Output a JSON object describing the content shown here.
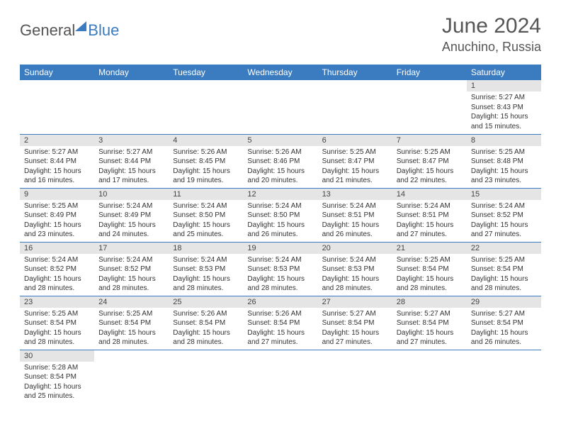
{
  "logo": {
    "part1": "General",
    "part2": "Blue"
  },
  "title": {
    "month": "June 2024",
    "location": "Anuchino, Russia"
  },
  "calendar": {
    "day_headers": [
      "Sunday",
      "Monday",
      "Tuesday",
      "Wednesday",
      "Thursday",
      "Friday",
      "Saturday"
    ],
    "header_bg": "#3b7bbf",
    "header_fg": "#ffffff",
    "daynum_bg": "#e5e5e5",
    "border_color": "#3b7bbf",
    "rows": [
      [
        null,
        null,
        null,
        null,
        null,
        null,
        {
          "n": "1",
          "sunrise": "Sunrise: 5:27 AM",
          "sunset": "Sunset: 8:43 PM",
          "daylight": "Daylight: 15 hours and 15 minutes."
        }
      ],
      [
        {
          "n": "2",
          "sunrise": "Sunrise: 5:27 AM",
          "sunset": "Sunset: 8:44 PM",
          "daylight": "Daylight: 15 hours and 16 minutes."
        },
        {
          "n": "3",
          "sunrise": "Sunrise: 5:27 AM",
          "sunset": "Sunset: 8:44 PM",
          "daylight": "Daylight: 15 hours and 17 minutes."
        },
        {
          "n": "4",
          "sunrise": "Sunrise: 5:26 AM",
          "sunset": "Sunset: 8:45 PM",
          "daylight": "Daylight: 15 hours and 19 minutes."
        },
        {
          "n": "5",
          "sunrise": "Sunrise: 5:26 AM",
          "sunset": "Sunset: 8:46 PM",
          "daylight": "Daylight: 15 hours and 20 minutes."
        },
        {
          "n": "6",
          "sunrise": "Sunrise: 5:25 AM",
          "sunset": "Sunset: 8:47 PM",
          "daylight": "Daylight: 15 hours and 21 minutes."
        },
        {
          "n": "7",
          "sunrise": "Sunrise: 5:25 AM",
          "sunset": "Sunset: 8:47 PM",
          "daylight": "Daylight: 15 hours and 22 minutes."
        },
        {
          "n": "8",
          "sunrise": "Sunrise: 5:25 AM",
          "sunset": "Sunset: 8:48 PM",
          "daylight": "Daylight: 15 hours and 23 minutes."
        }
      ],
      [
        {
          "n": "9",
          "sunrise": "Sunrise: 5:25 AM",
          "sunset": "Sunset: 8:49 PM",
          "daylight": "Daylight: 15 hours and 23 minutes."
        },
        {
          "n": "10",
          "sunrise": "Sunrise: 5:24 AM",
          "sunset": "Sunset: 8:49 PM",
          "daylight": "Daylight: 15 hours and 24 minutes."
        },
        {
          "n": "11",
          "sunrise": "Sunrise: 5:24 AM",
          "sunset": "Sunset: 8:50 PM",
          "daylight": "Daylight: 15 hours and 25 minutes."
        },
        {
          "n": "12",
          "sunrise": "Sunrise: 5:24 AM",
          "sunset": "Sunset: 8:50 PM",
          "daylight": "Daylight: 15 hours and 26 minutes."
        },
        {
          "n": "13",
          "sunrise": "Sunrise: 5:24 AM",
          "sunset": "Sunset: 8:51 PM",
          "daylight": "Daylight: 15 hours and 26 minutes."
        },
        {
          "n": "14",
          "sunrise": "Sunrise: 5:24 AM",
          "sunset": "Sunset: 8:51 PM",
          "daylight": "Daylight: 15 hours and 27 minutes."
        },
        {
          "n": "15",
          "sunrise": "Sunrise: 5:24 AM",
          "sunset": "Sunset: 8:52 PM",
          "daylight": "Daylight: 15 hours and 27 minutes."
        }
      ],
      [
        {
          "n": "16",
          "sunrise": "Sunrise: 5:24 AM",
          "sunset": "Sunset: 8:52 PM",
          "daylight": "Daylight: 15 hours and 28 minutes."
        },
        {
          "n": "17",
          "sunrise": "Sunrise: 5:24 AM",
          "sunset": "Sunset: 8:52 PM",
          "daylight": "Daylight: 15 hours and 28 minutes."
        },
        {
          "n": "18",
          "sunrise": "Sunrise: 5:24 AM",
          "sunset": "Sunset: 8:53 PM",
          "daylight": "Daylight: 15 hours and 28 minutes."
        },
        {
          "n": "19",
          "sunrise": "Sunrise: 5:24 AM",
          "sunset": "Sunset: 8:53 PM",
          "daylight": "Daylight: 15 hours and 28 minutes."
        },
        {
          "n": "20",
          "sunrise": "Sunrise: 5:24 AM",
          "sunset": "Sunset: 8:53 PM",
          "daylight": "Daylight: 15 hours and 28 minutes."
        },
        {
          "n": "21",
          "sunrise": "Sunrise: 5:25 AM",
          "sunset": "Sunset: 8:54 PM",
          "daylight": "Daylight: 15 hours and 28 minutes."
        },
        {
          "n": "22",
          "sunrise": "Sunrise: 5:25 AM",
          "sunset": "Sunset: 8:54 PM",
          "daylight": "Daylight: 15 hours and 28 minutes."
        }
      ],
      [
        {
          "n": "23",
          "sunrise": "Sunrise: 5:25 AM",
          "sunset": "Sunset: 8:54 PM",
          "daylight": "Daylight: 15 hours and 28 minutes."
        },
        {
          "n": "24",
          "sunrise": "Sunrise: 5:25 AM",
          "sunset": "Sunset: 8:54 PM",
          "daylight": "Daylight: 15 hours and 28 minutes."
        },
        {
          "n": "25",
          "sunrise": "Sunrise: 5:26 AM",
          "sunset": "Sunset: 8:54 PM",
          "daylight": "Daylight: 15 hours and 28 minutes."
        },
        {
          "n": "26",
          "sunrise": "Sunrise: 5:26 AM",
          "sunset": "Sunset: 8:54 PM",
          "daylight": "Daylight: 15 hours and 27 minutes."
        },
        {
          "n": "27",
          "sunrise": "Sunrise: 5:27 AM",
          "sunset": "Sunset: 8:54 PM",
          "daylight": "Daylight: 15 hours and 27 minutes."
        },
        {
          "n": "28",
          "sunrise": "Sunrise: 5:27 AM",
          "sunset": "Sunset: 8:54 PM",
          "daylight": "Daylight: 15 hours and 27 minutes."
        },
        {
          "n": "29",
          "sunrise": "Sunrise: 5:27 AM",
          "sunset": "Sunset: 8:54 PM",
          "daylight": "Daylight: 15 hours and 26 minutes."
        }
      ],
      [
        {
          "n": "30",
          "sunrise": "Sunrise: 5:28 AM",
          "sunset": "Sunset: 8:54 PM",
          "daylight": "Daylight: 15 hours and 25 minutes."
        },
        null,
        null,
        null,
        null,
        null,
        null
      ]
    ]
  }
}
